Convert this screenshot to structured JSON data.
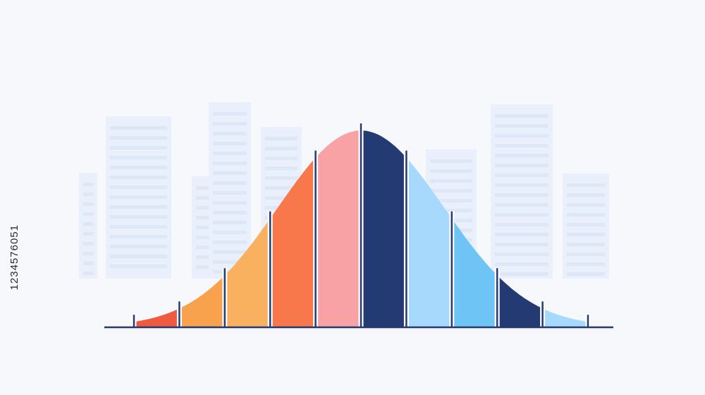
{
  "image_id_text": "1234576051",
  "colors": {
    "background": "#f7f8fc",
    "baseline": "#243a73",
    "separator": "#243a73",
    "building_fill": "#e9f0fb",
    "building_window": "#dde7f6"
  },
  "chart_data": {
    "type": "area",
    "shape": "bell-curve",
    "title": "",
    "xlabel": "",
    "ylabel": "",
    "grid": false,
    "legend": "none",
    "segments": [
      {
        "color": "#f05a3f"
      },
      {
        "color": "#f8a24e"
      },
      {
        "color": "#f9b15f"
      },
      {
        "color": "#f8774b"
      },
      {
        "color": "#f8a2a5"
      },
      {
        "color": "#243a73"
      },
      {
        "color": "#a6d9fb"
      },
      {
        "color": "#6ec4f5"
      },
      {
        "color": "#243a73"
      },
      {
        "color": "#a6d9fb"
      }
    ]
  }
}
